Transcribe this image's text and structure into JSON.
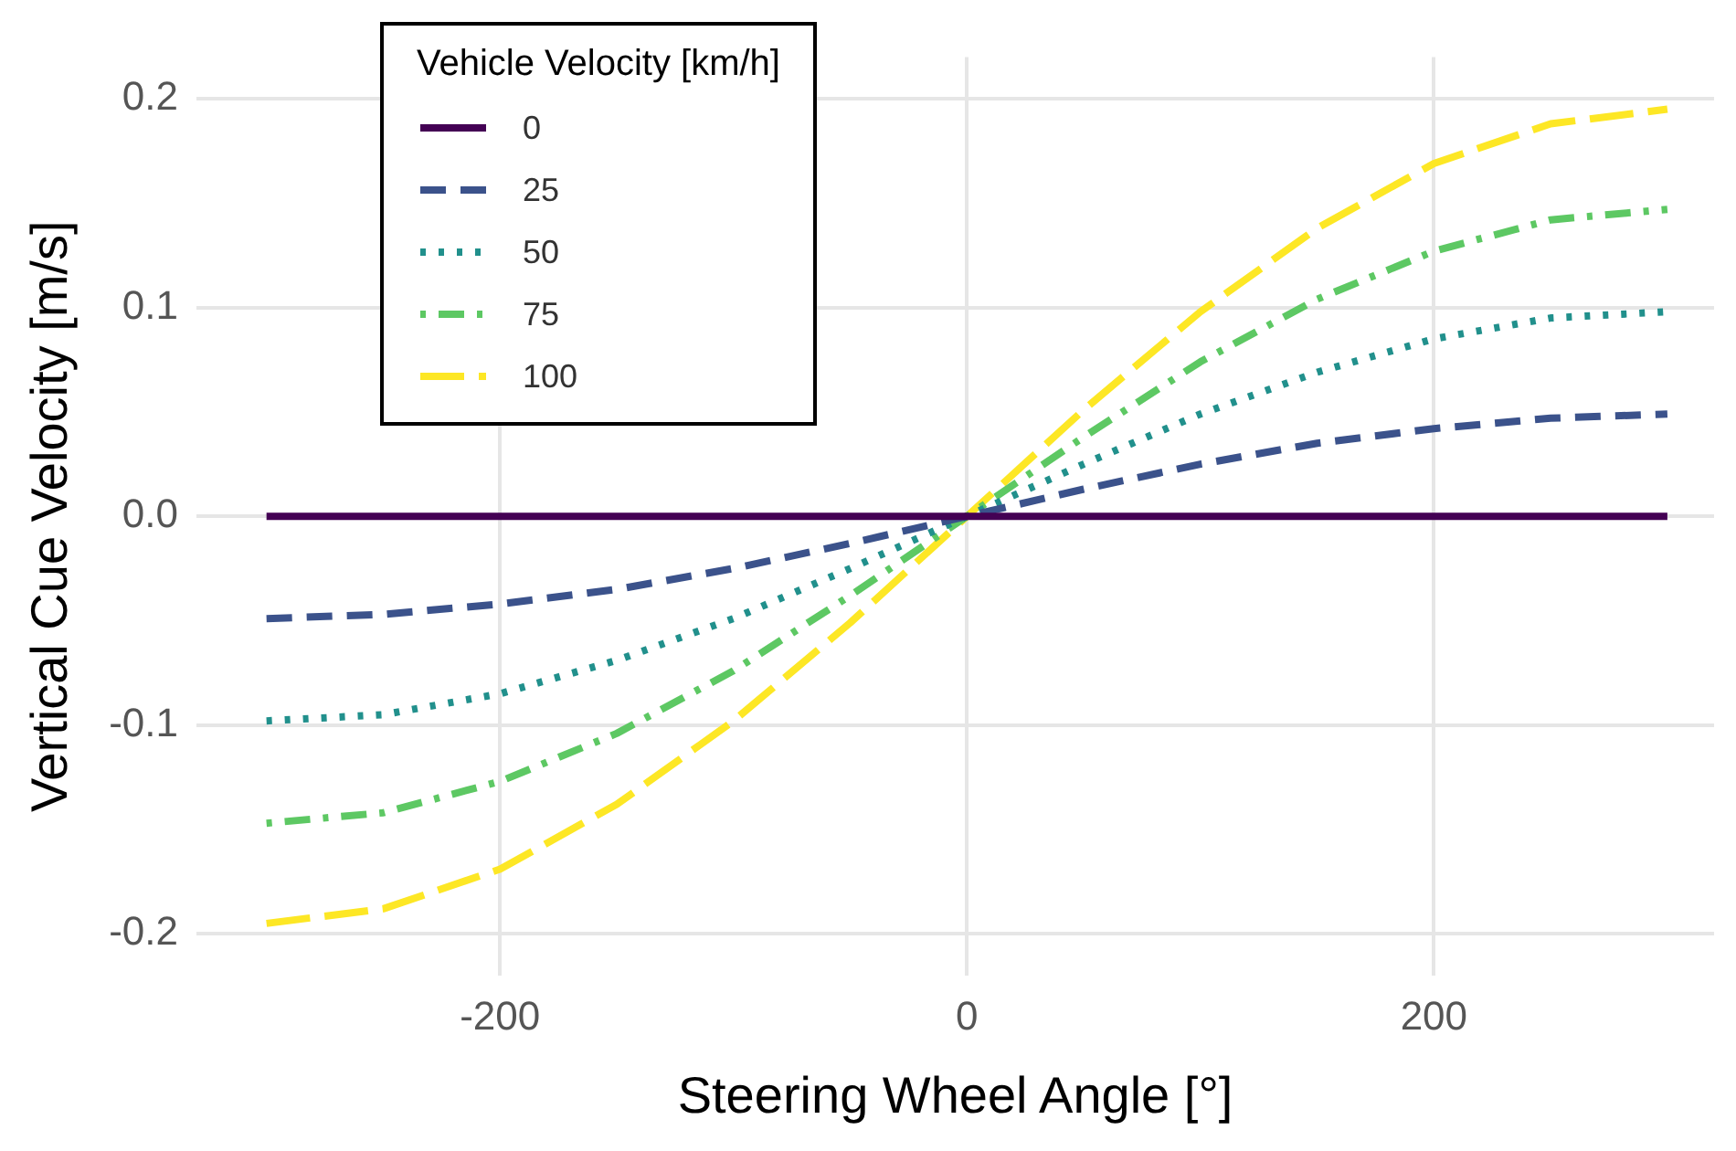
{
  "chart_data": {
    "type": "line",
    "xlabel": "Steering Wheel Angle [°]",
    "ylabel": "Vertical Cue Velocity [m/s]",
    "legend_title": "Vehicle Velocity [km/h]",
    "legend": "top left",
    "grid": true,
    "marker": "none",
    "x": [
      -300,
      -250,
      -200,
      -150,
      -100,
      -50,
      0,
      50,
      100,
      150,
      200,
      250,
      300
    ],
    "xlim": [
      -330,
      320
    ],
    "xticks": [
      -200,
      0,
      200
    ],
    "ylim": [
      -0.22,
      0.22
    ],
    "yticks": [
      {
        "value": -0.2,
        "label": "-0.2"
      },
      {
        "value": -0.1,
        "label": "-0.1"
      },
      {
        "value": 0,
        "label": "0.0"
      },
      {
        "value": 0.1,
        "label": "0.1"
      },
      {
        "value": 0.2,
        "label": "0.2"
      }
    ],
    "series": [
      {
        "name": "0",
        "color": "#440154",
        "line_style": "solid",
        "values": [
          0,
          0,
          0,
          0,
          0,
          0,
          0,
          0,
          0,
          0,
          0,
          0,
          0
        ]
      },
      {
        "name": "25",
        "color": "#3b528b",
        "line_style": "dashed",
        "values": [
          -0.049,
          -0.047,
          -0.042,
          -0.035,
          -0.025,
          -0.013,
          0,
          0.013,
          0.025,
          0.035,
          0.042,
          0.047,
          0.049
        ]
      },
      {
        "name": "50",
        "color": "#21908c",
        "line_style": "dotted",
        "values": [
          -0.098,
          -0.095,
          -0.085,
          -0.069,
          -0.049,
          -0.025,
          0,
          0.025,
          0.049,
          0.069,
          0.085,
          0.095,
          0.098
        ]
      },
      {
        "name": "75",
        "color": "#5dc863",
        "line_style": "dashdot",
        "values": [
          -0.147,
          -0.142,
          -0.127,
          -0.104,
          -0.074,
          -0.038,
          0,
          0.038,
          0.074,
          0.104,
          0.127,
          0.142,
          0.147
        ]
      },
      {
        "name": "100",
        "color": "#fde725",
        "line_style": "longdash",
        "values": [
          -0.195,
          -0.188,
          -0.169,
          -0.138,
          -0.098,
          -0.051,
          0,
          0.051,
          0.098,
          0.138,
          0.169,
          0.188,
          0.195
        ]
      }
    ]
  }
}
